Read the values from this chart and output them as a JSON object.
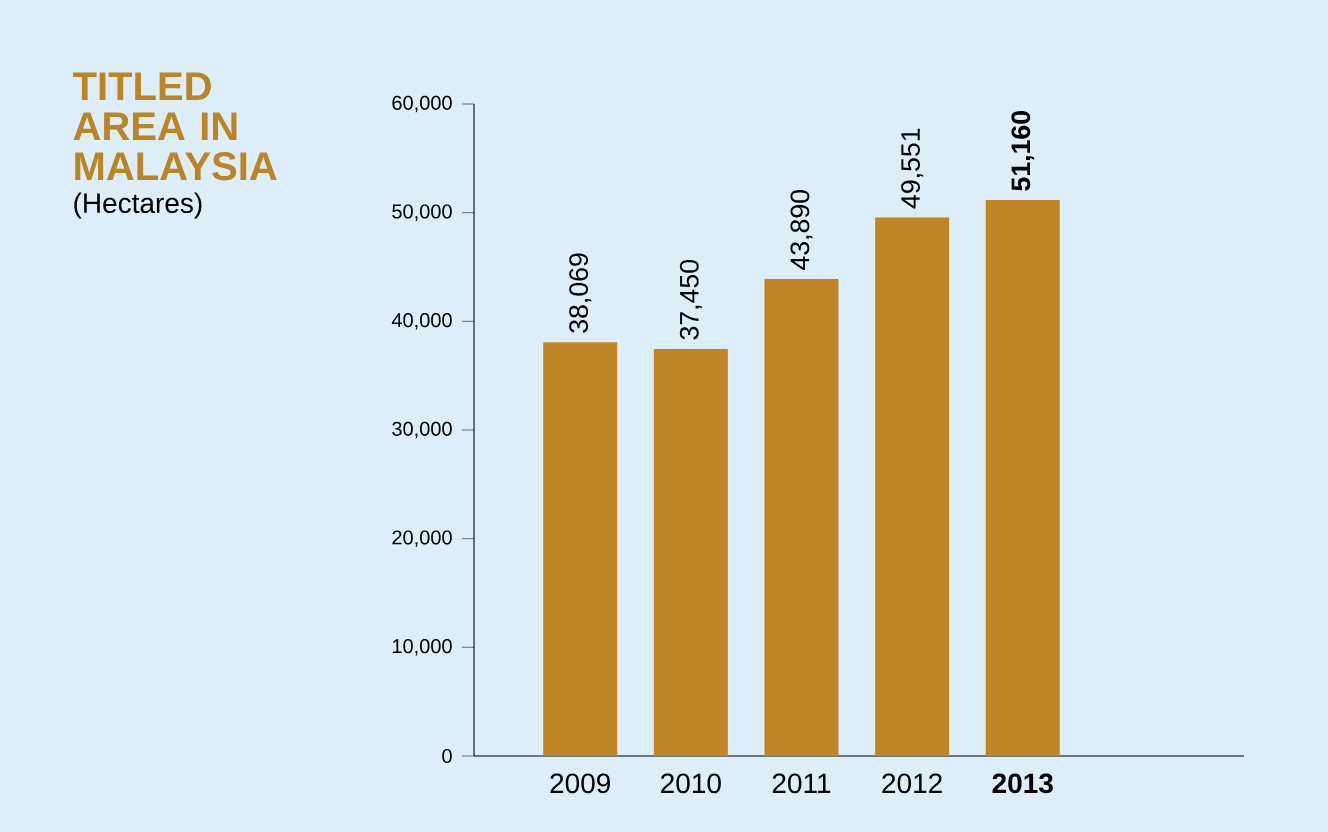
{
  "chart_data": {
    "type": "bar",
    "title": "TITLED AREA IN MALAYSIA",
    "subtitle": "(Hectares)",
    "categories": [
      "2009",
      "2010",
      "2011",
      "2012",
      "**2013**"
    ],
    "values": [
      38069,
      37450,
      43890,
      49551,
      51160
    ],
    "value_labels": [
      "38,069",
      "37,450",
      "43,890",
      "49,551",
      "**51,160**"
    ],
    "color": "#bf8628",
    "ylim": [
      0,
      60000
    ],
    "yticks": [
      {
        "value": 0,
        "label": "0"
      },
      {
        "value": 10000,
        "label": "10,000"
      },
      {
        "value": 20000,
        "label": "20,000"
      },
      {
        "value": 30000,
        "label": "30,000"
      },
      {
        "value": 40000,
        "label": "40,000"
      },
      {
        "value": 50000,
        "label": "50,000"
      },
      {
        "value": 60000,
        "label": "60,000"
      }
    ],
    "grid": false
  }
}
